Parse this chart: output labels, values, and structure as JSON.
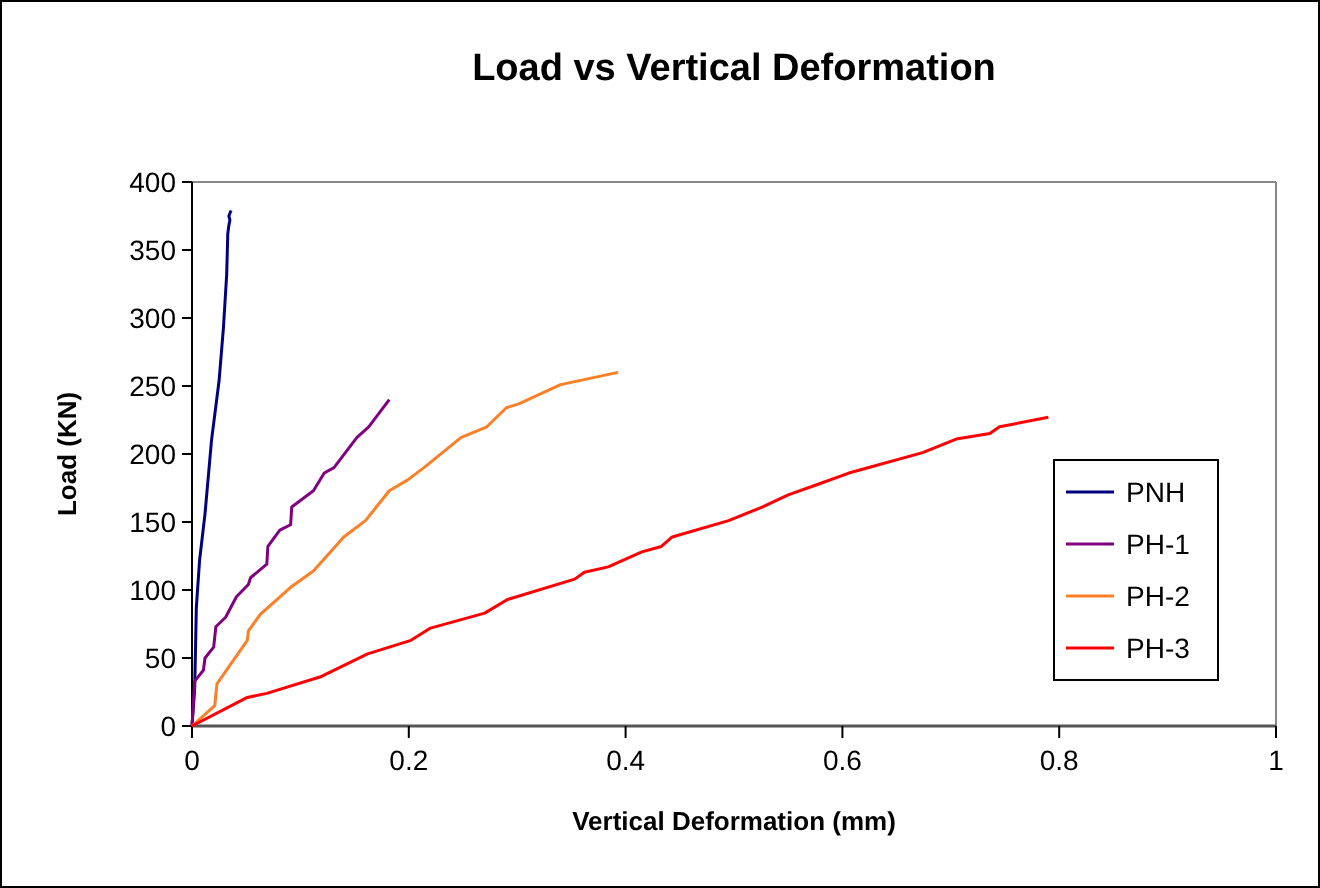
{
  "chart_data": {
    "type": "line",
    "title": "Load vs Vertical Deformation",
    "xlabel": "Vertical Deformation (mm)",
    "ylabel": "Load (KN)",
    "xlim": [
      0,
      1
    ],
    "xticks": [
      0,
      0.2,
      0.4,
      0.6,
      0.8,
      1
    ],
    "ylim": [
      0,
      400
    ],
    "yticks": [
      0,
      50,
      100,
      150,
      200,
      250,
      300,
      350,
      400
    ],
    "grid": false,
    "legend": "right",
    "marker": "none",
    "line_style": "solid",
    "series": [
      {
        "name": "PNH",
        "color": "#000080",
        "x": [
          0,
          0.0025,
          0.004,
          0.007,
          0.012,
          0.018,
          0.025,
          0.029,
          0.032,
          0.033,
          0.034,
          0.035,
          0.034,
          0.036
        ],
        "values": [
          0,
          28,
          87,
          122,
          156,
          210,
          254,
          293,
          332,
          362,
          368,
          372,
          375,
          379
        ]
      },
      {
        "name": "PH-1",
        "color": "#800080",
        "x": [
          0,
          0.0025,
          0.0105,
          0.012,
          0.02,
          0.022,
          0.031,
          0.041,
          0.052,
          0.054,
          0.069,
          0.07,
          0.081,
          0.091,
          0.092,
          0.112,
          0.122,
          0.131,
          0.152,
          0.163,
          0.182
        ],
        "values": [
          0,
          33,
          41,
          50,
          58,
          73,
          80,
          95,
          104,
          109,
          119,
          132,
          144,
          148,
          161,
          173,
          186,
          190,
          212,
          220,
          240
        ]
      },
      {
        "name": "PH-2",
        "color": "#ff7f27",
        "x": [
          0,
          0.021,
          0.023,
          0.051,
          0.052,
          0.063,
          0.091,
          0.112,
          0.14,
          0.16,
          0.17,
          0.182,
          0.199,
          0.214,
          0.248,
          0.272,
          0.29,
          0.302,
          0.34,
          0.393
        ],
        "values": [
          0,
          15,
          31,
          63,
          70,
          82,
          102,
          114,
          139,
          151,
          161,
          173,
          181,
          190,
          212,
          220,
          234,
          237,
          251,
          260
        ]
      },
      {
        "name": "PH-3",
        "color": "#ff0000",
        "x": [
          0,
          0.051,
          0.069,
          0.118,
          0.162,
          0.202,
          0.22,
          0.27,
          0.291,
          0.353,
          0.362,
          0.384,
          0.415,
          0.433,
          0.443,
          0.495,
          0.526,
          0.55,
          0.575,
          0.606,
          0.674,
          0.705,
          0.736,
          0.745,
          0.79
        ],
        "values": [
          0,
          21,
          24,
          36,
          53,
          63,
          72,
          83,
          93,
          108,
          113,
          117,
          128,
          132,
          139,
          151,
          161,
          170,
          177,
          186,
          201,
          211,
          215,
          220,
          227
        ]
      }
    ]
  }
}
